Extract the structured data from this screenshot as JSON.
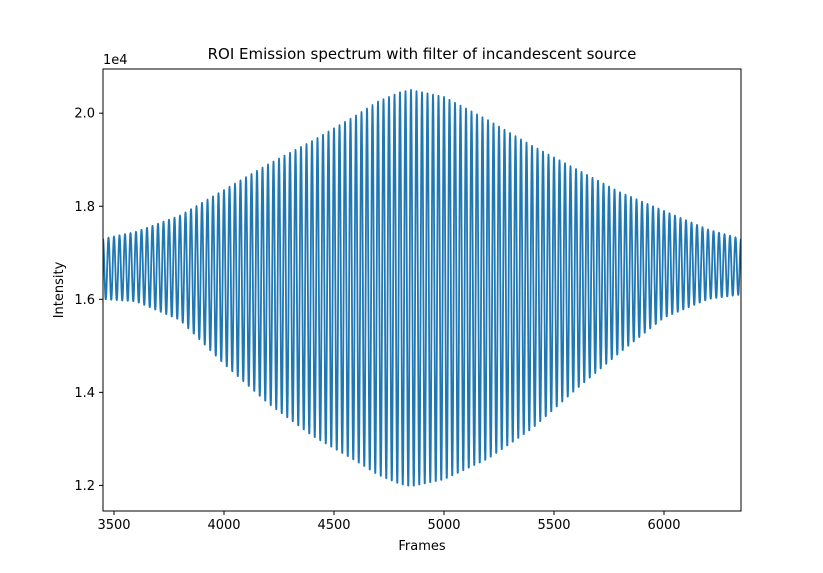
{
  "chart_data": {
    "type": "line",
    "title": "ROI Emission spectrum with filter of incandescent source",
    "xlabel": "Frames",
    "ylabel": "Intensity",
    "y_offset_label": "1e4",
    "xlim": [
      3450,
      6350
    ],
    "ylim": [
      11450,
      20950
    ],
    "x_ticks": [
      3500,
      4000,
      4500,
      5000,
      5500,
      6000
    ],
    "x_tick_labels": [
      "3500",
      "4000",
      "4500",
      "5000",
      "5500",
      "6000"
    ],
    "y_ticks": [
      12000,
      14000,
      16000,
      18000,
      20000
    ],
    "y_tick_labels": [
      "1.2",
      "1.4",
      "1.6",
      "1.8",
      "2.0"
    ],
    "grid": false,
    "series": [
      {
        "color": "#1f77b4",
        "description": "oscillating intensity (interferogram) with ~116 cycles; envelope widest near frame 4850",
        "period_frames": 25,
        "x_start": 3450,
        "x_end": 6350,
        "envelope": {
          "x": [
            3450,
            3600,
            3800,
            4000,
            4200,
            4400,
            4600,
            4700,
            4800,
            4850,
            4900,
            5000,
            5200,
            5400,
            5600,
            5800,
            6000,
            6200,
            6350
          ],
          "upper": [
            17300,
            17450,
            17800,
            18350,
            18900,
            19400,
            19950,
            20250,
            20450,
            20500,
            20450,
            20350,
            19850,
            19300,
            18800,
            18300,
            17900,
            17500,
            17300
          ],
          "lower": [
            16000,
            15950,
            15550,
            14600,
            13750,
            13050,
            12500,
            12200,
            12000,
            11950,
            12000,
            12100,
            12550,
            13200,
            14050,
            14850,
            15600,
            16000,
            16100
          ]
        }
      }
    ]
  }
}
